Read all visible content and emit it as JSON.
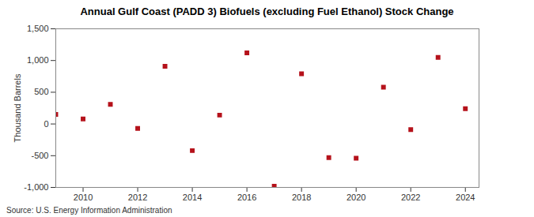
{
  "chart_data": {
    "type": "scatter",
    "title": "Annual Gulf Coast (PADD 3) Biofuels (excluding Fuel Ethanol) Stock Change",
    "y_label": "Thousand Barrels",
    "caption": "Source: U.S. Energy Information Administration",
    "x": [
      2009,
      2010,
      2011,
      2012,
      2013,
      2014,
      2015,
      2016,
      2017,
      2018,
      2019,
      2020,
      2021,
      2022,
      2023,
      2024
    ],
    "values": [
      150,
      80,
      310,
      -70,
      910,
      -420,
      140,
      1120,
      -980,
      790,
      -530,
      -540,
      580,
      -90,
      1050,
      240
    ],
    "color": "#b5121b",
    "marker": "square",
    "grid": false,
    "xlim": [
      2009,
      2024.5
    ],
    "xticks": [
      2010,
      2012,
      2014,
      2016,
      2018,
      2020,
      2022,
      2024
    ],
    "ylim": [
      -1000,
      1500
    ],
    "yticks": [
      {
        "value": -1000,
        "label": "-1,000"
      },
      -500,
      0,
      500,
      {
        "value": 1000,
        "label": "1,000"
      },
      {
        "value": 1500,
        "label": "1,500"
      }
    ]
  }
}
